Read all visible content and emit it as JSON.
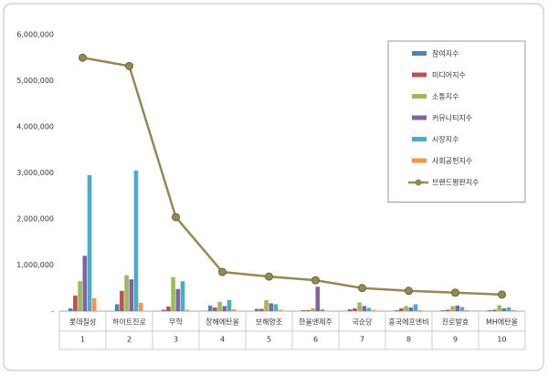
{
  "chart_data": {
    "type": "bar",
    "categories": [
      "롯데칠성",
      "하이트진로",
      "무학",
      "창해에탄올",
      "보해양조",
      "한울앤제주",
      "국순당",
      "흥국에프엔비",
      "진로발효",
      "MH에탄올"
    ],
    "category_numbers": [
      "1",
      "2",
      "3",
      "4",
      "5",
      "6",
      "7",
      "8",
      "9",
      "10"
    ],
    "series": [
      {
        "name": "참여지수",
        "color": "#4f81bd",
        "values": [
          60000,
          150000,
          30000,
          120000,
          50000,
          20000,
          40000,
          20000,
          20000,
          20000
        ]
      },
      {
        "name": "미디어지수",
        "color": "#c0504d",
        "values": [
          340000,
          440000,
          100000,
          80000,
          50000,
          20000,
          60000,
          60000,
          30000,
          30000
        ]
      },
      {
        "name": "소통지수",
        "color": "#9bbb59",
        "values": [
          650000,
          780000,
          740000,
          200000,
          240000,
          60000,
          190000,
          110000,
          110000,
          130000
        ]
      },
      {
        "name": "커뮤니티지수",
        "color": "#8064a2",
        "values": [
          1200000,
          690000,
          480000,
          110000,
          170000,
          530000,
          110000,
          80000,
          120000,
          60000
        ]
      },
      {
        "name": "시장지수",
        "color": "#4bacc6",
        "values": [
          2950000,
          3050000,
          650000,
          240000,
          150000,
          40000,
          70000,
          150000,
          90000,
          80000
        ]
      },
      {
        "name": "사회공헌지수",
        "color": "#f79646",
        "values": [
          280000,
          180000,
          30000,
          40000,
          30000,
          10000,
          20000,
          20000,
          20000,
          20000
        ]
      },
      {
        "name": "브랜드평판지수",
        "color": "#938953",
        "type": "line",
        "values": [
          5500000,
          5320000,
          2040000,
          850000,
          750000,
          670000,
          500000,
          440000,
          400000,
          360000
        ]
      }
    ],
    "ylim": [
      0,
      6000000
    ],
    "yticks": [
      {
        "value": 0,
        "label": "-"
      },
      {
        "value": 1000000,
        "label": "1,000,000"
      },
      {
        "value": 2000000,
        "label": "2,000,000"
      },
      {
        "value": 3000000,
        "label": "3,000,000"
      },
      {
        "value": 4000000,
        "label": "4,000,000"
      },
      {
        "value": 5000000,
        "label": "5,000,000"
      },
      {
        "value": 6000000,
        "label": "6,000,000"
      }
    ],
    "legend": "top-right"
  }
}
